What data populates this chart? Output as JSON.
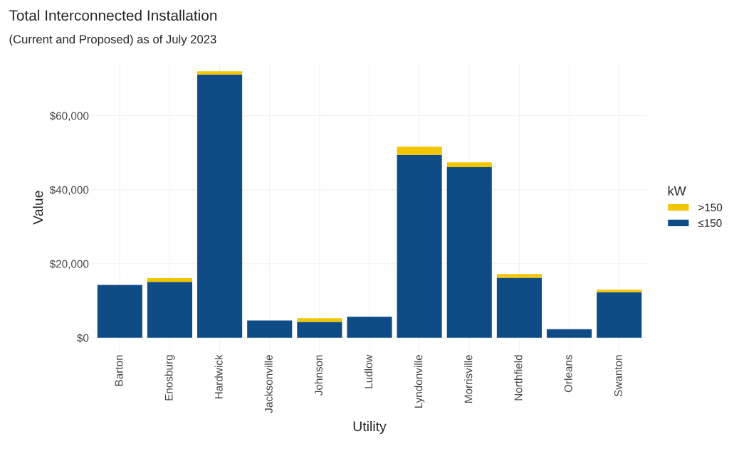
{
  "chart_data": {
    "type": "bar",
    "title": "Total Interconnected Installation",
    "subtitle": "(Current and Proposed) as of July 2023",
    "xlabel": "Utility",
    "ylabel": "Value",
    "legend_title": "kW",
    "categories": [
      "Barton",
      "Enosburg",
      "Hardwick",
      "Jacksonville",
      "Johnson",
      "Ludlow",
      "Lyndonville",
      "Morrisville",
      "Northfield",
      "Orleans",
      "Swanton"
    ],
    "stacked": true,
    "series": [
      {
        "name": "≤150",
        "color": "#0f4c85",
        "values": [
          14300,
          15100,
          71100,
          4700,
          4300,
          5700,
          49400,
          46100,
          16200,
          2300,
          12300
        ]
      },
      {
        "name": ">150",
        "color": "#f2c500",
        "values": [
          0,
          1000,
          900,
          0,
          1000,
          0,
          2200,
          1300,
          1000,
          0,
          700
        ]
      }
    ],
    "ylim": [
      -3600,
      74000
    ],
    "yticks": [
      {
        "value": 0,
        "label": "$0"
      },
      {
        "value": 20000,
        "label": "$20,000"
      },
      {
        "value": 40000,
        "label": "$40,000"
      },
      {
        "value": 60000,
        "label": "$60,000"
      }
    ],
    "grid": true,
    "legend": "right"
  }
}
